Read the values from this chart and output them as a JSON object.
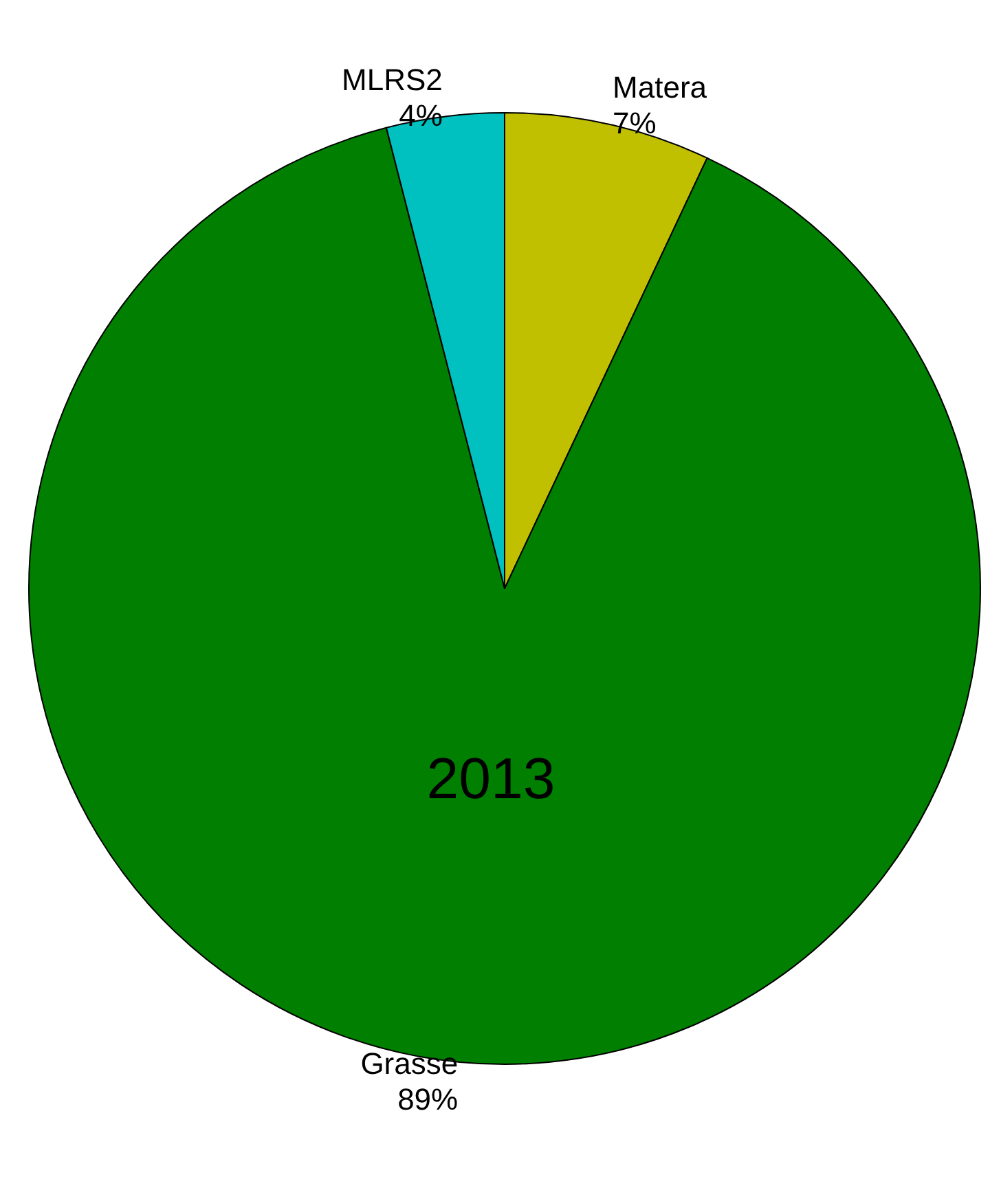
{
  "chart_data": {
    "type": "pie",
    "title": "2013",
    "categories": [
      "Matera",
      "Grasse",
      "MLRS2"
    ],
    "values": [
      7,
      89,
      4
    ],
    "value_labels": [
      "7%",
      "89%",
      "4%"
    ],
    "colors": [
      "#c0c000",
      "#007f00",
      "#00c0c0"
    ],
    "legend": false
  }
}
